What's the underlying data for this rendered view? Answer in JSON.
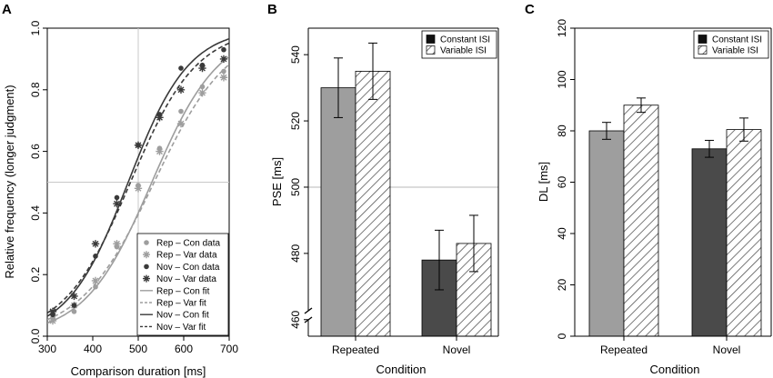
{
  "chart_data": [
    {
      "panel": "A",
      "type": "scatter",
      "xlabel": "Comparison duration [ms]",
      "ylabel": "Relative frequency (longer judgment)",
      "xlim": [
        300,
        700
      ],
      "ylim": [
        0,
        1
      ],
      "xticks": [
        300,
        400,
        500,
        600,
        700
      ],
      "yticks": [
        0.0,
        0.2,
        0.4,
        0.6,
        0.8,
        1.0
      ],
      "reference_lines": {
        "x": 500,
        "y": 0.5
      },
      "series": [
        {
          "name": "Rep – Con data",
          "kind": "points",
          "marker": "dot",
          "color": "#9e9e9e",
          "x": [
            312,
            359,
            406,
            453,
            500,
            547,
            594,
            641,
            688
          ],
          "y": [
            0.06,
            0.08,
            0.16,
            0.29,
            0.49,
            0.61,
            0.73,
            0.81,
            0.86
          ]
        },
        {
          "name": "Rep – Var data",
          "kind": "points",
          "marker": "star",
          "color": "#9e9e9e",
          "x": [
            312,
            359,
            406,
            453,
            500,
            547,
            594,
            641,
            688
          ],
          "y": [
            0.05,
            0.1,
            0.18,
            0.3,
            0.48,
            0.6,
            0.69,
            0.79,
            0.84
          ]
        },
        {
          "name": "Nov – Con data",
          "kind": "points",
          "marker": "dot",
          "color": "#3a3a3a",
          "x": [
            312,
            359,
            406,
            453,
            500,
            547,
            594,
            641,
            688
          ],
          "y": [
            0.07,
            0.1,
            0.26,
            0.45,
            0.62,
            0.72,
            0.87,
            0.88,
            0.93
          ]
        },
        {
          "name": "Nov – Var data",
          "kind": "points",
          "marker": "star",
          "color": "#3a3a3a",
          "x": [
            312,
            359,
            406,
            453,
            500,
            547,
            594,
            641,
            688
          ],
          "y": [
            0.08,
            0.13,
            0.3,
            0.43,
            0.62,
            0.71,
            0.8,
            0.87,
            0.9
          ]
        },
        {
          "name": "Rep – Con fit",
          "kind": "fit",
          "dash": "solid",
          "color": "#9e9e9e",
          "pse": 530,
          "slope": 0.0135
        },
        {
          "name": "Rep – Var fit",
          "kind": "fit",
          "dash": "dashed",
          "color": "#9e9e9e",
          "pse": 535,
          "slope": 0.0122
        },
        {
          "name": "Nov – Con fit",
          "kind": "fit",
          "dash": "solid",
          "color": "#3a3a3a",
          "pse": 478,
          "slope": 0.015
        },
        {
          "name": "Nov – Var fit",
          "kind": "fit",
          "dash": "dashed",
          "color": "#3a3a3a",
          "pse": 483,
          "slope": 0.0137
        }
      ],
      "legend": "bottom-right"
    },
    {
      "panel": "B",
      "type": "bar",
      "xlabel": "Condition",
      "ylabel": "PSE [ms]",
      "categories": [
        "Repeated",
        "Novel"
      ],
      "ylim": [
        455,
        548
      ],
      "yticks": [
        460,
        480,
        500,
        520,
        540
      ],
      "axis_break": true,
      "reference_line_y": 500,
      "series": [
        {
          "name": "Constant ISI",
          "pattern": "solid",
          "values": [
            530,
            478
          ],
          "error": [
            9,
            9
          ]
        },
        {
          "name": "Variable ISI",
          "pattern": "hatched",
          "values": [
            535,
            483
          ],
          "error": [
            8.5,
            8.5
          ]
        }
      ],
      "bar_colors": [
        "#9e9e9e",
        "#4a4a4a"
      ],
      "legend": "top-right"
    },
    {
      "panel": "C",
      "type": "bar",
      "xlabel": "Condition",
      "ylabel": "DL [ms]",
      "categories": [
        "Repeated",
        "Novel"
      ],
      "ylim": [
        0,
        120
      ],
      "yticks": [
        0,
        20,
        40,
        60,
        80,
        100,
        120
      ],
      "series": [
        {
          "name": "Constant ISI",
          "pattern": "solid",
          "values": [
            80,
            73
          ],
          "error": [
            3.3,
            3.3
          ]
        },
        {
          "name": "Variable ISI",
          "pattern": "hatched",
          "values": [
            90,
            80.5
          ],
          "error": [
            2.8,
            4.5
          ]
        }
      ],
      "bar_colors": [
        "#9e9e9e",
        "#4a4a4a"
      ],
      "legend": "top-right"
    }
  ]
}
